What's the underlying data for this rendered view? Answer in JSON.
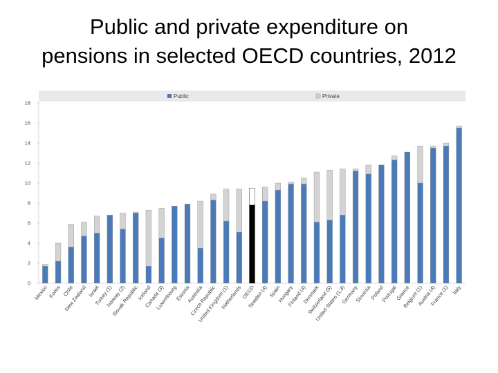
{
  "slide": {
    "title_line1": "Public and private expenditure on",
    "title_line2": "pensions in selected OECD countries, 2012"
  },
  "chart_data": {
    "type": "bar",
    "stacked": true,
    "legend": [
      "Public",
      "Private"
    ],
    "legend_position": "top",
    "ylim": [
      0,
      18
    ],
    "yticks": [
      0,
      2,
      4,
      6,
      8,
      10,
      12,
      14,
      16,
      18
    ],
    "grid": false,
    "highlight_category": "OECD",
    "categories": [
      "Mexico",
      "Korea",
      "Chile",
      "New Zealand",
      "Israel",
      "Turkey (1)",
      "Norway (2)",
      "Slovak Republic",
      "Iceland",
      "Canada (3)",
      "Luxembourg",
      "Estonia",
      "Australia",
      "Czech Republic",
      "United Kingdom (1)",
      "Netherlands",
      "OECD",
      "Sweden (4)",
      "Spain",
      "Hungary",
      "Finland (4)",
      "Denmark",
      "Switzerland (5)",
      "United States (1,3)",
      "Germany",
      "Slovenia",
      "Poland",
      "Portugal",
      "Greece",
      "Belgium (1)",
      "Austria (4)",
      "France (1)",
      "Italy"
    ],
    "series": [
      {
        "name": "Public",
        "values": [
          1.7,
          2.2,
          3.6,
          4.7,
          5.0,
          6.8,
          5.4,
          7.0,
          1.7,
          4.5,
          7.7,
          7.9,
          3.5,
          8.3,
          6.2,
          5.1,
          7.8,
          8.2,
          9.3,
          9.9,
          9.9,
          6.1,
          6.3,
          6.8,
          11.2,
          10.9,
          11.8,
          12.3,
          13.1,
          10.0,
          13.5,
          13.7,
          15.5
        ]
      },
      {
        "name": "Private",
        "values": [
          0.2,
          1.8,
          2.3,
          1.4,
          1.7,
          0.0,
          1.6,
          0.1,
          5.6,
          3.0,
          0.0,
          0.0,
          4.7,
          0.6,
          3.2,
          4.3,
          1.7,
          1.4,
          0.7,
          0.2,
          0.6,
          5.0,
          5.0,
          4.6,
          0.2,
          0.9,
          0.0,
          0.4,
          0.0,
          3.7,
          0.2,
          0.3,
          0.2
        ]
      }
    ]
  },
  "colors": {
    "public": "#4a7ab8",
    "private": "#d3d3d3",
    "oecd_public": "#000000",
    "oecd_private": "#ffffff",
    "stroke": "#8a8a8a",
    "legend_band": "#e9e9e9",
    "axis_text": "#404040"
  }
}
